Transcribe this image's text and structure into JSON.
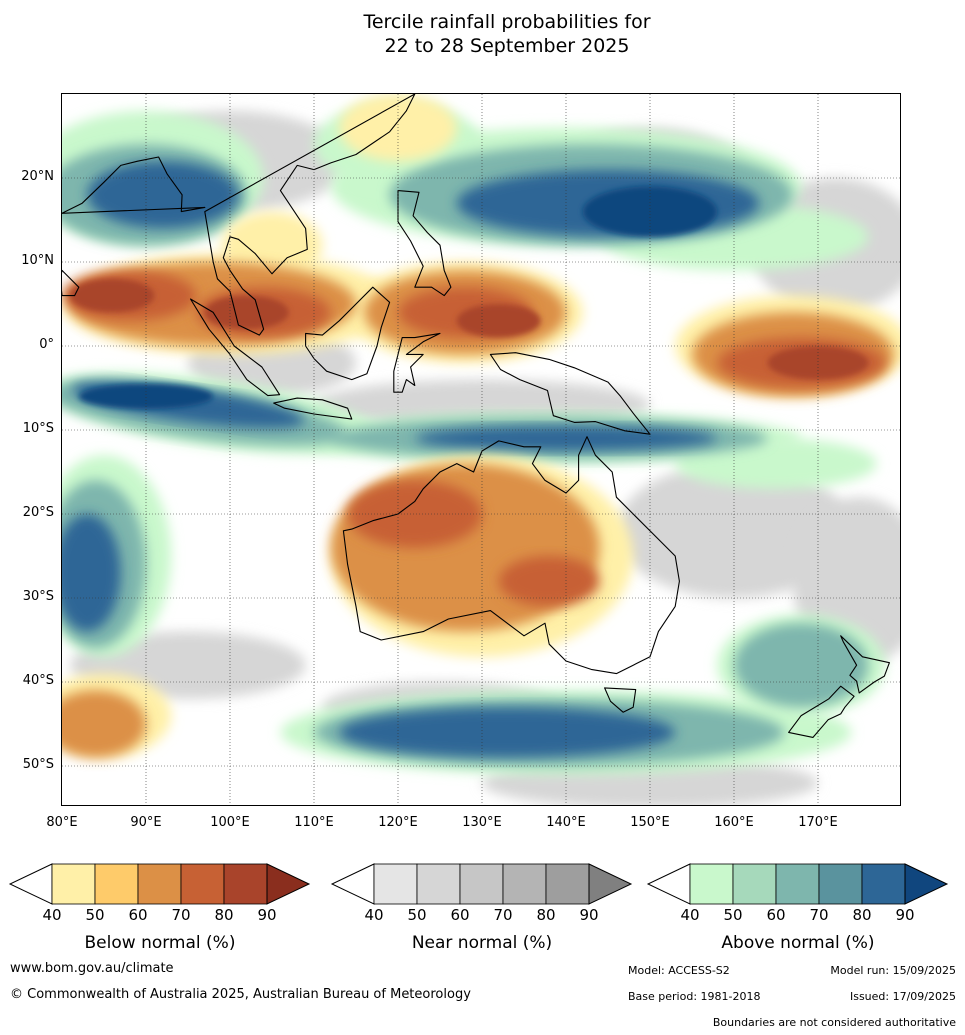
{
  "title": {
    "line1": "Tercile rainfall probabilities for",
    "line2": "22 to 28 September 2025"
  },
  "map": {
    "latitude_labels": [
      "20°N",
      "10°N",
      "0°",
      "10°S",
      "20°S",
      "30°S",
      "40°S",
      "50°S"
    ],
    "longitude_labels": [
      "80°E",
      "90°E",
      "100°E",
      "110°E",
      "120°E",
      "130°E",
      "140°E",
      "150°E",
      "160°E",
      "170°E"
    ],
    "colors": {
      "below": [
        "#fff0a8",
        "#fecb6a",
        "#dc9046",
        "#c76134",
        "#a9442b",
        "#8a2e1e"
      ],
      "near": [
        "#e5e5e5",
        "#d6d6d6",
        "#c6c6c6",
        "#b4b4b4",
        "#9e9e9e",
        "#808080"
      ],
      "above": [
        "#c9f8cc",
        "#a6d9bb",
        "#7eb6ad",
        "#5a939e",
        "#2d6696",
        "#10467e"
      ]
    }
  },
  "colorbars": [
    {
      "id": "below",
      "title": "Below normal (%)",
      "ticks": [
        "40",
        "50",
        "60",
        "70",
        "80",
        "90"
      ],
      "colors": [
        "#fff0a8",
        "#fecb6a",
        "#dc9046",
        "#c76134",
        "#a9442b",
        "#8a2e1e"
      ]
    },
    {
      "id": "near",
      "title": "Near normal (%)",
      "ticks": [
        "40",
        "50",
        "60",
        "70",
        "80",
        "90"
      ],
      "colors": [
        "#e5e5e5",
        "#d6d6d6",
        "#c6c6c6",
        "#b4b4b4",
        "#9e9e9e",
        "#808080"
      ]
    },
    {
      "id": "above",
      "title": "Above normal (%)",
      "ticks": [
        "40",
        "50",
        "60",
        "70",
        "80",
        "90"
      ],
      "colors": [
        "#c9f8cc",
        "#a6d9bb",
        "#7eb6ad",
        "#5a939e",
        "#2d6696",
        "#10467e"
      ]
    }
  ],
  "footer": {
    "website": "www.bom.gov.au/climate",
    "copyright": "© Commonwealth of Australia 2025, Australian Bureau of Meteorology",
    "model": "Model: ACCESS-S2",
    "base_period": "Base period: 1981-2018",
    "model_run": "Model run: 15/09/2025",
    "issued": "Issued: 17/09/2025",
    "disclaimer": "Boundaries are not considered authoritative"
  }
}
